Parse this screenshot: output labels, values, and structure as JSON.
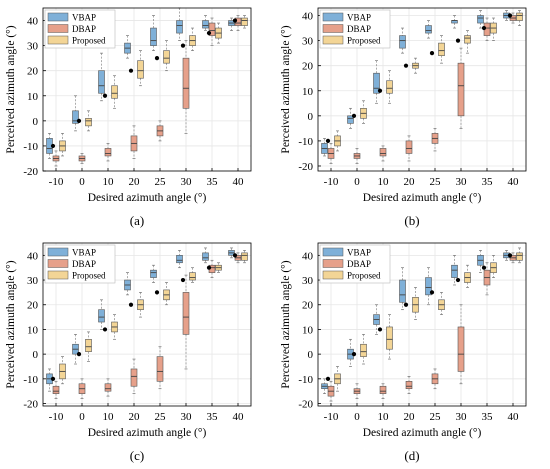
{
  "colors": {
    "VBAP": "#7fb0d8",
    "DBAP": "#e6a08a",
    "Proposed": "#f3d596",
    "outline": "#555555",
    "grid": "#e6e6e6",
    "outlier": "#e05050",
    "target": "#000000"
  },
  "chart_data": [
    {
      "type": "box",
      "caption": "(a)",
      "xlabel": "Desired azimuth angle (°)",
      "ylabel": "Perceived azimuth angle (°)",
      "categories": [
        "-10",
        "0",
        "10",
        "20",
        "25",
        "30",
        "35",
        "40"
      ],
      "targets": [
        -10,
        0,
        10,
        20,
        25,
        30,
        35,
        40
      ],
      "ylim": [
        -20,
        45
      ],
      "yticks": [
        -20,
        -10,
        0,
        10,
        20,
        30,
        40
      ],
      "yticklabels": [
        "-20",
        "-10",
        "0",
        "10",
        "20",
        "30",
        "40"
      ],
      "grid": true,
      "legend_position": "top-left",
      "series": [
        {
          "name": "VBAP",
          "boxes": [
            {
              "min": -15,
              "q1": -13,
              "med": -11,
              "q3": -7,
              "max": -5
            },
            {
              "min": -4,
              "q1": -1,
              "med": 0,
              "q3": 4,
              "max": 10
            },
            {
              "min": 8,
              "q1": 11,
              "med": 14,
              "q3": 20,
              "max": 27
            },
            {
              "min": 25,
              "q1": 27,
              "med": 29,
              "q3": 31,
              "max": 34
            },
            {
              "min": 28,
              "q1": 30,
              "med": 32,
              "q3": 37,
              "max": 42
            },
            {
              "min": 32,
              "q1": 35,
              "med": 38,
              "q3": 40,
              "max": 45
            },
            {
              "min": 36,
              "q1": 37,
              "med": 38,
              "q3": 40,
              "max": 42
            },
            {
              "min": 36,
              "q1": 38,
              "med": 39,
              "q3": 40,
              "max": 41
            }
          ]
        },
        {
          "name": "DBAP",
          "boxes": [
            {
              "min": -18,
              "q1": -16,
              "med": -15,
              "q3": -14,
              "max": -12
            },
            {
              "min": -17,
              "q1": -16,
              "med": -15,
              "q3": -14,
              "max": -13
            },
            {
              "min": -16,
              "q1": -14,
              "med": -13,
              "q3": -11,
              "max": -9
            },
            {
              "min": -15,
              "q1": -12,
              "med": -9,
              "q3": -6,
              "max": -2
            },
            {
              "min": -8,
              "q1": -6,
              "med": -4,
              "q3": -2,
              "max": 0
            },
            {
              "min": -5,
              "q1": 5,
              "med": 13,
              "q3": 25,
              "max": 32
            },
            {
              "min": 30,
              "q1": 34,
              "med": 36,
              "q3": 39,
              "max": 41
            },
            {
              "min": 36,
              "q1": 38,
              "med": 39,
              "q3": 41,
              "max": 42
            }
          ]
        },
        {
          "name": "Proposed",
          "boxes": [
            {
              "min": -14,
              "q1": -12,
              "med": -10,
              "q3": -8,
              "max": -5
            },
            {
              "min": -4,
              "q1": -2,
              "med": 0,
              "q3": 1,
              "max": 4
            },
            {
              "min": 5,
              "q1": 9,
              "med": 11,
              "q3": 14,
              "max": 18
            },
            {
              "min": 14,
              "q1": 17,
              "med": 20,
              "q3": 24,
              "max": 28
            },
            {
              "min": 20,
              "q1": 23,
              "med": 25,
              "q3": 28,
              "max": 32
            },
            {
              "min": 28,
              "q1": 30,
              "med": 32,
              "q3": 34,
              "max": 37
            },
            {
              "min": 31,
              "q1": 33,
              "med": 35,
              "q3": 37,
              "max": 39
            },
            {
              "min": 37,
              "q1": 38,
              "med": 40,
              "q3": 41,
              "max": 42
            }
          ]
        }
      ]
    },
    {
      "type": "box",
      "caption": "(b)",
      "xlabel": "Desired azimuth angle (°)",
      "ylabel": "Perceived azimuth angle (°)",
      "categories": [
        "-10",
        "0",
        "10",
        "20",
        "25",
        "30",
        "35",
        "40"
      ],
      "targets": [
        -10,
        0,
        10,
        20,
        25,
        30,
        35,
        40
      ],
      "ylim": [
        -22,
        43
      ],
      "yticks": [
        -20,
        -10,
        0,
        10,
        20,
        30,
        40
      ],
      "yticklabels": [
        "-20",
        "-10",
        "0",
        "10",
        "20",
        "30",
        "40"
      ],
      "grid": true,
      "legend_position": "top-left",
      "series": [
        {
          "name": "VBAP",
          "boxes": [
            {
              "min": -16,
              "q1": -15,
              "med": -13,
              "q3": -11,
              "max": -9
            },
            {
              "min": -5,
              "q1": -3,
              "med": -1,
              "q3": 0,
              "max": 3
            },
            {
              "min": 5,
              "q1": 9,
              "med": 11,
              "q3": 17,
              "max": 22
            },
            {
              "min": 25,
              "q1": 27,
              "med": 30,
              "q3": 32,
              "max": 35
            },
            {
              "min": 31,
              "q1": 33,
              "med": 34,
              "q3": 36,
              "max": 38
            },
            {
              "min": 35,
              "q1": 37,
              "med": 38,
              "q3": 38,
              "max": 40
            },
            {
              "min": 35,
              "q1": 37,
              "med": 39,
              "q3": 40,
              "max": 42
            },
            {
              "min": 38,
              "q1": 39,
              "med": 40,
              "q3": 41,
              "max": 42
            }
          ]
        },
        {
          "name": "DBAP",
          "boxes": [
            {
              "min": -19,
              "q1": -17,
              "med": -15,
              "q3": -13,
              "max": -11
            },
            {
              "min": -19,
              "q1": -17,
              "med": -16,
              "q3": -15,
              "max": -13
            },
            {
              "min": -18,
              "q1": -16,
              "med": -15,
              "q3": -13,
              "max": -12
            },
            {
              "min": -18,
              "q1": -15,
              "med": -13,
              "q3": -10,
              "max": -8
            },
            {
              "min": -14,
              "q1": -11,
              "med": -9,
              "q3": -7,
              "max": -5
            },
            {
              "min": -5,
              "q1": 0,
              "med": 12,
              "q3": 21,
              "max": 27
            },
            {
              "min": 30,
              "q1": 32,
              "med": 35,
              "q3": 37,
              "max": 39
            },
            {
              "min": 37,
              "q1": 38,
              "med": 39,
              "q3": 40,
              "max": 41
            }
          ]
        },
        {
          "name": "Proposed",
          "boxes": [
            {
              "min": -14,
              "q1": -12,
              "med": -10,
              "q3": -8,
              "max": -6
            },
            {
              "min": -3,
              "q1": -1,
              "med": 1,
              "q3": 3,
              "max": 6
            },
            {
              "min": 5,
              "q1": 9,
              "med": 11,
              "q3": 14,
              "max": 18
            },
            {
              "min": 17,
              "q1": 19,
              "med": 20,
              "q3": 21,
              "max": 23
            },
            {
              "min": 21,
              "q1": 24,
              "med": 26,
              "q3": 29,
              "max": 32
            },
            {
              "min": 25,
              "q1": 29,
              "med": 31,
              "q3": 32,
              "max": 34
            },
            {
              "min": 30,
              "q1": 33,
              "med": 35,
              "q3": 37,
              "max": 39
            },
            {
              "min": 36,
              "q1": 38,
              "med": 40,
              "q3": 41,
              "max": 42
            }
          ]
        }
      ]
    },
    {
      "type": "box",
      "caption": "(c)",
      "xlabel": "Desired azimuth angle (°)",
      "ylabel": "Perceived azimuth angle (°)",
      "categories": [
        "-10",
        "0",
        "10",
        "20",
        "25",
        "30",
        "35",
        "40"
      ],
      "targets": [
        -10,
        0,
        10,
        20,
        25,
        30,
        35,
        40
      ],
      "ylim": [
        -21,
        45
      ],
      "yticks": [
        -20,
        -10,
        0,
        10,
        20,
        30,
        40
      ],
      "yticklabels": [
        "-20",
        "-10",
        "0",
        "10",
        "20",
        "30",
        "40"
      ],
      "grid": true,
      "legend_position": "top-left",
      "series": [
        {
          "name": "VBAP",
          "boxes": [
            {
              "min": -15,
              "q1": -12,
              "med": -10,
              "q3": -8,
              "max": -6
            },
            {
              "min": -4,
              "q1": 0,
              "med": 2,
              "q3": 4,
              "max": 8
            },
            {
              "min": 10,
              "q1": 13,
              "med": 15,
              "q3": 18,
              "max": 22
            },
            {
              "min": 24,
              "q1": 26,
              "med": 28,
              "q3": 30,
              "max": 33
            },
            {
              "min": 29,
              "q1": 31,
              "med": 33,
              "q3": 34,
              "max": 36
            },
            {
              "min": 35,
              "q1": 37,
              "med": 38,
              "q3": 40,
              "max": 42
            },
            {
              "min": 37,
              "q1": 38,
              "med": 39,
              "q3": 41,
              "max": 43
            },
            {
              "min": 39,
              "q1": 40,
              "med": 41,
              "q3": 42,
              "max": 43
            }
          ]
        },
        {
          "name": "DBAP",
          "boxes": [
            {
              "min": -18,
              "q1": -16,
              "med": -15,
              "q3": -13,
              "max": -11
            },
            {
              "min": -18,
              "q1": -16,
              "med": -14,
              "q3": -12,
              "max": -10
            },
            {
              "min": -17,
              "q1": -15,
              "med": -14,
              "q3": -12,
              "max": -10
            },
            {
              "min": -16,
              "q1": -13,
              "med": -9,
              "q3": -6,
              "max": -2
            },
            {
              "min": -14,
              "q1": -11,
              "med": -7,
              "q3": -1,
              "max": 3
            },
            {
              "min": -6,
              "q1": 8,
              "med": 15,
              "q3": 25,
              "max": 32
            },
            {
              "min": 31,
              "q1": 33,
              "med": 35,
              "q3": 36,
              "max": 38
            },
            {
              "min": 37,
              "q1": 38,
              "med": 39,
              "q3": 40,
              "max": 41
            }
          ]
        },
        {
          "name": "Proposed",
          "boxes": [
            {
              "min": -12,
              "q1": -10,
              "med": -7,
              "q3": -4,
              "max": -1
            },
            {
              "min": -3,
              "q1": 1,
              "med": 3,
              "q3": 6,
              "max": 9
            },
            {
              "min": 6,
              "q1": 9,
              "med": 11,
              "q3": 13,
              "max": 16
            },
            {
              "min": 15,
              "q1": 18,
              "med": 20,
              "q3": 22,
              "max": 25
            },
            {
              "min": 20,
              "q1": 22,
              "med": 24,
              "q3": 26,
              "max": 29
            },
            {
              "min": 29,
              "q1": 30,
              "med": 31,
              "q3": 33,
              "max": 35
            },
            {
              "min": 33,
              "q1": 34,
              "med": 35,
              "q3": 36,
              "max": 37
            },
            {
              "min": 37,
              "q1": 38,
              "med": 40,
              "q3": 41,
              "max": 42
            }
          ]
        }
      ]
    },
    {
      "type": "box",
      "caption": "(d)",
      "xlabel": "Desired azimuth angle (°)",
      "ylabel": "Perceived azimuth angle (°)",
      "categories": [
        "-10",
        "0",
        "10",
        "20",
        "25",
        "30",
        "35",
        "40"
      ],
      "targets": [
        -10,
        0,
        10,
        20,
        25,
        30,
        35,
        40
      ],
      "ylim": [
        -21,
        45
      ],
      "yticks": [
        -20,
        -10,
        0,
        10,
        20,
        30,
        40
      ],
      "yticklabels": [
        "-20",
        "-10",
        "0",
        "10",
        "20",
        "30",
        "40"
      ],
      "grid": true,
      "legend_position": "top-left",
      "series": [
        {
          "name": "VBAP",
          "boxes": [
            {
              "min": -16,
              "q1": -14,
              "med": -13,
              "q3": -12,
              "max": -10
            },
            {
              "min": -5,
              "q1": -2,
              "med": 0,
              "q3": 2,
              "max": 6
            },
            {
              "min": 8,
              "q1": 12,
              "med": 14,
              "q3": 16,
              "max": 20
            },
            {
              "min": 18,
              "q1": 21,
              "med": 24,
              "q3": 30,
              "max": 35
            },
            {
              "min": 20,
              "q1": 24,
              "med": 27,
              "q3": 31,
              "max": 35
            },
            {
              "min": 28,
              "q1": 31,
              "med": 34,
              "q3": 36,
              "max": 40
            },
            {
              "min": 33,
              "q1": 36,
              "med": 38,
              "q3": 40,
              "max": 42
            },
            {
              "min": 38,
              "q1": 39,
              "med": 40,
              "q3": 41,
              "max": 42
            }
          ]
        },
        {
          "name": "DBAP",
          "boxes": [
            {
              "min": -19,
              "q1": -17,
              "med": -15,
              "q3": -13,
              "max": -11
            },
            {
              "min": -18,
              "q1": -16,
              "med": -15,
              "q3": -14,
              "max": -12
            },
            {
              "min": -18,
              "q1": -16,
              "med": -15,
              "q3": -13,
              "max": -12
            },
            {
              "min": -16,
              "q1": -14,
              "med": -13,
              "q3": -11,
              "max": -9
            },
            {
              "min": -14,
              "q1": -12,
              "med": -10,
              "q3": -8,
              "max": -6
            },
            {
              "min": -12,
              "q1": -7,
              "med": 0,
              "q3": 11,
              "max": 20
            },
            {
              "min": 24,
              "q1": 28,
              "med": 31,
              "q3": 34,
              "max": 37
            },
            {
              "min": 37,
              "q1": 38,
              "med": 39,
              "q3": 40,
              "max": 41
            }
          ]
        },
        {
          "name": "Proposed",
          "boxes": [
            {
              "min": -15,
              "q1": -12,
              "med": -10,
              "q3": -8,
              "max": -5
            },
            {
              "min": -4,
              "q1": -1,
              "med": 1,
              "q3": 4,
              "max": 8
            },
            {
              "min": -2,
              "q1": 2,
              "med": 6,
              "q3": 11,
              "max": 16
            },
            {
              "min": 14,
              "q1": 17,
              "med": 20,
              "q3": 23,
              "max": 27
            },
            {
              "min": 16,
              "q1": 18,
              "med": 20,
              "q3": 22,
              "max": 25
            },
            {
              "min": 27,
              "q1": 29,
              "med": 31,
              "q3": 33,
              "max": 36
            },
            {
              "min": 31,
              "q1": 33,
              "med": 35,
              "q3": 37,
              "max": 40
            },
            {
              "min": 37,
              "q1": 38,
              "med": 40,
              "q3": 41,
              "max": 43
            }
          ]
        }
      ]
    }
  ]
}
